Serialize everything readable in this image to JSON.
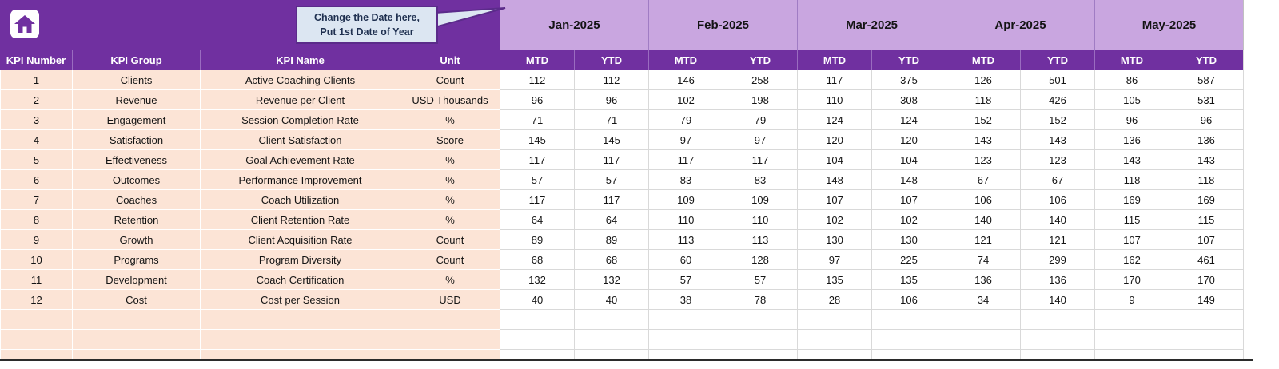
{
  "callout": {
    "line1": "Change the Date here,",
    "line2": "Put 1st Date of Year"
  },
  "months": [
    "Jan-2025",
    "Feb-2025",
    "Mar-2025",
    "Apr-2025",
    "May-2025"
  ],
  "subheaders": [
    "MTD",
    "YTD"
  ],
  "columns": [
    "KPI Number",
    "KPI Group",
    "KPI Name",
    "Unit"
  ],
  "colors": {
    "header_purple": "#7030A0",
    "month_purple": "#C9A6E0",
    "row_peach": "#FCE4D6",
    "callout_fill": "#DCE6F2",
    "callout_border": "#5B2B8A",
    "grid": "#D9D9D9"
  },
  "rows": [
    {
      "num": "1",
      "group": "Clients",
      "name": "Active Coaching Clients",
      "unit": "Count",
      "values": [
        112,
        112,
        146,
        258,
        117,
        375,
        126,
        501,
        86,
        587
      ]
    },
    {
      "num": "2",
      "group": "Revenue",
      "name": "Revenue per Client",
      "unit": "USD Thousands",
      "values": [
        96,
        96,
        102,
        198,
        110,
        308,
        118,
        426,
        105,
        531
      ]
    },
    {
      "num": "3",
      "group": "Engagement",
      "name": "Session Completion Rate",
      "unit": "%",
      "values": [
        71,
        71,
        79,
        79,
        124,
        124,
        152,
        152,
        96,
        96
      ]
    },
    {
      "num": "4",
      "group": "Satisfaction",
      "name": "Client Satisfaction",
      "unit": "Score",
      "values": [
        145,
        145,
        97,
        97,
        120,
        120,
        143,
        143,
        136,
        136
      ]
    },
    {
      "num": "5",
      "group": "Effectiveness",
      "name": "Goal Achievement Rate",
      "unit": "%",
      "values": [
        117,
        117,
        117,
        117,
        104,
        104,
        123,
        123,
        143,
        143
      ]
    },
    {
      "num": "6",
      "group": "Outcomes",
      "name": "Performance Improvement",
      "unit": "%",
      "values": [
        57,
        57,
        83,
        83,
        148,
        148,
        67,
        67,
        118,
        118
      ]
    },
    {
      "num": "7",
      "group": "Coaches",
      "name": "Coach Utilization",
      "unit": "%",
      "values": [
        117,
        117,
        109,
        109,
        107,
        107,
        106,
        106,
        169,
        169
      ]
    },
    {
      "num": "8",
      "group": "Retention",
      "name": "Client Retention Rate",
      "unit": "%",
      "values": [
        64,
        64,
        110,
        110,
        102,
        102,
        140,
        140,
        115,
        115
      ]
    },
    {
      "num": "9",
      "group": "Growth",
      "name": "Client Acquisition Rate",
      "unit": "Count",
      "values": [
        89,
        89,
        113,
        113,
        130,
        130,
        121,
        121,
        107,
        107
      ]
    },
    {
      "num": "10",
      "group": "Programs",
      "name": "Program Diversity",
      "unit": "Count",
      "values": [
        68,
        68,
        60,
        128,
        97,
        225,
        74,
        299,
        162,
        461
      ]
    },
    {
      "num": "11",
      "group": "Development",
      "name": "Coach Certification",
      "unit": "%",
      "values": [
        132,
        132,
        57,
        57,
        135,
        135,
        136,
        136,
        170,
        170
      ]
    },
    {
      "num": "12",
      "group": "Cost",
      "name": "Cost per Session",
      "unit": "USD",
      "values": [
        40,
        40,
        38,
        78,
        28,
        106,
        34,
        140,
        9,
        149
      ]
    }
  ],
  "empty_row_count": 3
}
